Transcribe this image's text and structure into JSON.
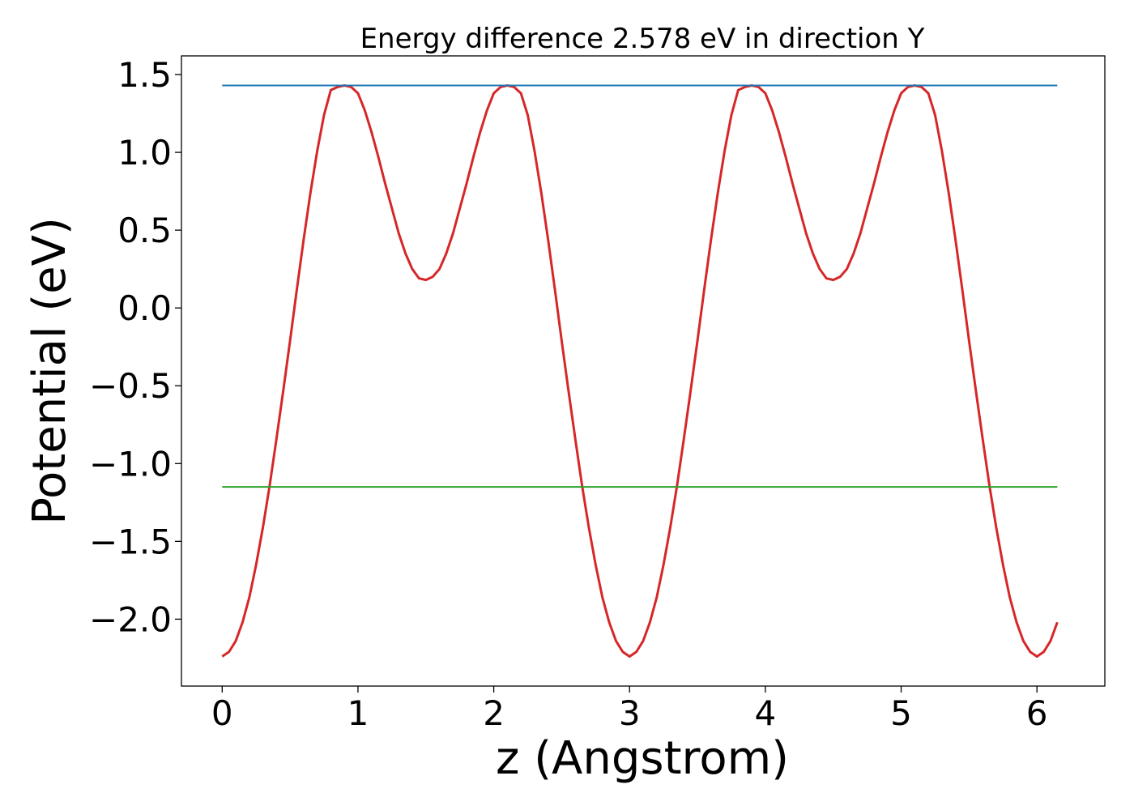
{
  "chart_data": {
    "type": "line",
    "title": "Energy difference 2.578 eV in direction Y",
    "xlabel": "z (Angstrom)",
    "ylabel": "Potential (eV)",
    "xlim": [
      -0.3,
      6.5
    ],
    "ylim": [
      -2.43,
      1.62
    ],
    "xticks": [
      0,
      1,
      2,
      3,
      4,
      5,
      6
    ],
    "xtick_labels": [
      "0",
      "1",
      "2",
      "3",
      "4",
      "5",
      "6"
    ],
    "yticks": [
      1.5,
      1.0,
      0.5,
      0.0,
      -0.5,
      -1.0,
      -1.5,
      -2.0
    ],
    "ytick_labels": [
      "1.5",
      "1.0",
      "0.5",
      "0.0",
      "−0.5",
      "−1.0",
      "−1.5",
      "−2.0"
    ],
    "grid": false,
    "series": [
      {
        "color": "#d62728",
        "style": "curve",
        "x": [
          0.0,
          0.05,
          0.1,
          0.15,
          0.2,
          0.25,
          0.3,
          0.35,
          0.4,
          0.45,
          0.5,
          0.55,
          0.6,
          0.65,
          0.7,
          0.75,
          0.8,
          0.85,
          0.9,
          0.95,
          1.0,
          1.05,
          1.1,
          1.15,
          1.2,
          1.25,
          1.3,
          1.35,
          1.4,
          1.45,
          1.5,
          1.55,
          1.6,
          1.65,
          1.7,
          1.75,
          1.8,
          1.85,
          1.9,
          1.95,
          2.0,
          2.05,
          2.1,
          2.15,
          2.2,
          2.25,
          2.3,
          2.35,
          2.4,
          2.45,
          2.5,
          2.55,
          2.6,
          2.65,
          2.7,
          2.75,
          2.8,
          2.85,
          2.9,
          2.95,
          3.0,
          3.05,
          3.1,
          3.15,
          3.2,
          3.25,
          3.3,
          3.35,
          3.4,
          3.45,
          3.5,
          3.55,
          3.6,
          3.65,
          3.7,
          3.75,
          3.8,
          3.85,
          3.9,
          3.95,
          4.0,
          4.05,
          4.1,
          4.15,
          4.2,
          4.25,
          4.3,
          4.35,
          4.4,
          4.45,
          4.5,
          4.55,
          4.6,
          4.65,
          4.7,
          4.75,
          4.8,
          4.85,
          4.9,
          4.95,
          5.0,
          5.05,
          5.1,
          5.15,
          5.2,
          5.25,
          5.3,
          5.35,
          5.4,
          5.45,
          5.5,
          5.55,
          5.6,
          5.65,
          5.7,
          5.75,
          5.8,
          5.85,
          5.9,
          5.95,
          6.0,
          6.05,
          6.1,
          6.15
        ],
        "y": [
          -2.24,
          -2.21,
          -2.14,
          -2.02,
          -1.86,
          -1.65,
          -1.41,
          -1.14,
          -0.84,
          -0.53,
          -0.21,
          0.12,
          0.44,
          0.74,
          1.01,
          1.24,
          1.4,
          1.42,
          1.43,
          1.42,
          1.38,
          1.27,
          1.13,
          0.97,
          0.8,
          0.64,
          0.48,
          0.35,
          0.25,
          0.19,
          0.18,
          0.2,
          0.25,
          0.35,
          0.48,
          0.64,
          0.8,
          0.97,
          1.13,
          1.27,
          1.38,
          1.42,
          1.43,
          1.42,
          1.38,
          1.24,
          1.01,
          0.74,
          0.44,
          0.12,
          -0.21,
          -0.53,
          -0.84,
          -1.14,
          -1.41,
          -1.65,
          -1.86,
          -2.02,
          -2.14,
          -2.21,
          -2.24,
          -2.21,
          -2.14,
          -2.02,
          -1.86,
          -1.65,
          -1.41,
          -1.14,
          -0.84,
          -0.53,
          -0.21,
          0.12,
          0.44,
          0.74,
          1.01,
          1.24,
          1.4,
          1.42,
          1.43,
          1.42,
          1.38,
          1.27,
          1.13,
          0.97,
          0.8,
          0.64,
          0.48,
          0.35,
          0.25,
          0.19,
          0.18,
          0.2,
          0.25,
          0.35,
          0.48,
          0.64,
          0.8,
          0.97,
          1.13,
          1.27,
          1.38,
          1.42,
          1.43,
          1.42,
          1.38,
          1.24,
          1.01,
          0.74,
          0.44,
          0.12,
          -0.21,
          -0.53,
          -0.84,
          -1.14,
          -1.41,
          -1.65,
          -1.86,
          -2.02,
          -2.14,
          -2.21,
          -2.24,
          -2.21,
          -2.14,
          -2.02
        ]
      },
      {
        "color": "#1f77b4",
        "style": "hline",
        "x": [
          0.0,
          6.15
        ],
        "y": [
          1.43,
          1.43
        ]
      },
      {
        "color": "#2ca02c",
        "style": "hline",
        "x": [
          0.0,
          6.15
        ],
        "y": [
          -1.15,
          -1.15
        ]
      }
    ]
  }
}
